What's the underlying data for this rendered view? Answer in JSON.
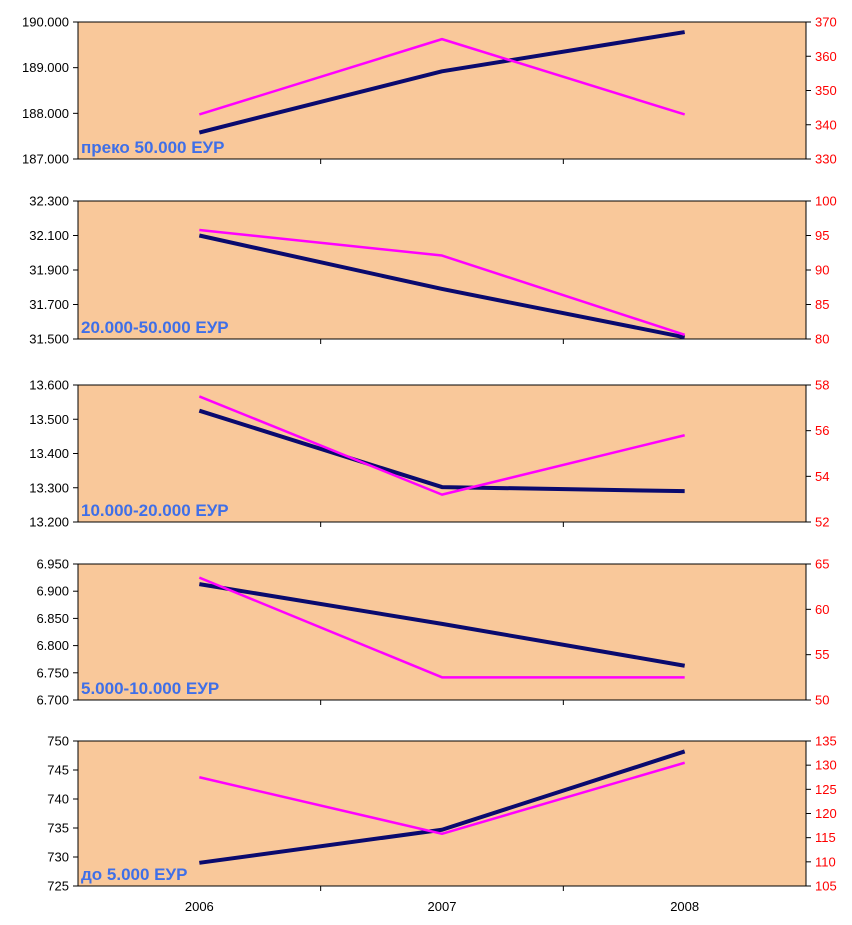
{
  "chart_data": {
    "type": "line",
    "categories": [
      "2006",
      "2007",
      "2008"
    ],
    "colors": {
      "plot_background": "#f9c89a",
      "left_series": "#0a0a6e",
      "right_series": "#ff00ff",
      "left_axis_text": "#000000",
      "right_axis_text": "#ff0000",
      "panel_label": "#3f6fe8"
    },
    "panels": [
      {
        "label": "преко 50.000 ЕУР",
        "left_axis": {
          "range": [
            187000,
            190000
          ],
          "ticks": [
            "187.000",
            "188.000",
            "189.000",
            "190.000"
          ],
          "tick_values": [
            187000,
            188000,
            189000,
            190000
          ]
        },
        "right_axis": {
          "range": [
            330,
            370
          ],
          "ticks": [
            "330",
            "340",
            "350",
            "360",
            "370"
          ],
          "tick_values": [
            330,
            340,
            350,
            360,
            370
          ]
        },
        "left_values": [
          187580,
          188920,
          189780
        ],
        "right_values": [
          343,
          365,
          343
        ]
      },
      {
        "label": "20.000-50.000 ЕУР",
        "left_axis": {
          "range": [
            31500,
            32300
          ],
          "ticks": [
            "31.500",
            "31.700",
            "31.900",
            "32.100",
            "32.300"
          ],
          "tick_values": [
            31500,
            31700,
            31900,
            32100,
            32300
          ]
        },
        "right_axis": {
          "range": [
            80,
            100
          ],
          "ticks": [
            "80",
            "85",
            "90",
            "95",
            "100"
          ],
          "tick_values": [
            80,
            85,
            90,
            95,
            100
          ]
        },
        "left_values": [
          32100,
          31790,
          31510
        ],
        "right_values": [
          95.8,
          92.1,
          80.6
        ]
      },
      {
        "label": "10.000-20.000 ЕУР",
        "left_axis": {
          "range": [
            13200,
            13600
          ],
          "ticks": [
            "13.200",
            "13.300",
            "13.400",
            "13.500",
            "13.600"
          ],
          "tick_values": [
            13200,
            13300,
            13400,
            13500,
            13600
          ]
        },
        "right_axis": {
          "range": [
            52,
            58
          ],
          "ticks": [
            "52",
            "54",
            "56",
            "58"
          ],
          "tick_values": [
            52,
            54,
            56,
            58
          ]
        },
        "left_values": [
          13525,
          13302,
          13290
        ],
        "right_values": [
          57.5,
          53.2,
          55.8
        ]
      },
      {
        "label": "5.000-10.000 ЕУР",
        "left_axis": {
          "range": [
            6700,
            6950
          ],
          "ticks": [
            "6.700",
            "6.750",
            "6.800",
            "6.850",
            "6.900",
            "6.950"
          ],
          "tick_values": [
            6700,
            6750,
            6800,
            6850,
            6900,
            6950
          ]
        },
        "right_axis": {
          "range": [
            50,
            65
          ],
          "ticks": [
            "50",
            "55",
            "60",
            "65"
          ],
          "tick_values": [
            50,
            55,
            60,
            65
          ]
        },
        "left_values": [
          6913,
          6840,
          6763
        ],
        "right_values": [
          63.5,
          52.5,
          52.5
        ]
      },
      {
        "label": "до 5.000 ЕУР",
        "left_axis": {
          "range": [
            725,
            750
          ],
          "ticks": [
            "725",
            "730",
            "735",
            "740",
            "745",
            "750"
          ],
          "tick_values": [
            725,
            730,
            735,
            740,
            745,
            750
          ]
        },
        "right_axis": {
          "range": [
            105,
            135
          ],
          "ticks": [
            "105",
            "110",
            "115",
            "120",
            "125",
            "130",
            "135"
          ],
          "tick_values": [
            105,
            110,
            115,
            120,
            125,
            130,
            135
          ]
        },
        "left_values": [
          729,
          734.7,
          748.2
        ],
        "right_values": [
          127.5,
          115.8,
          130.5
        ]
      }
    ]
  }
}
